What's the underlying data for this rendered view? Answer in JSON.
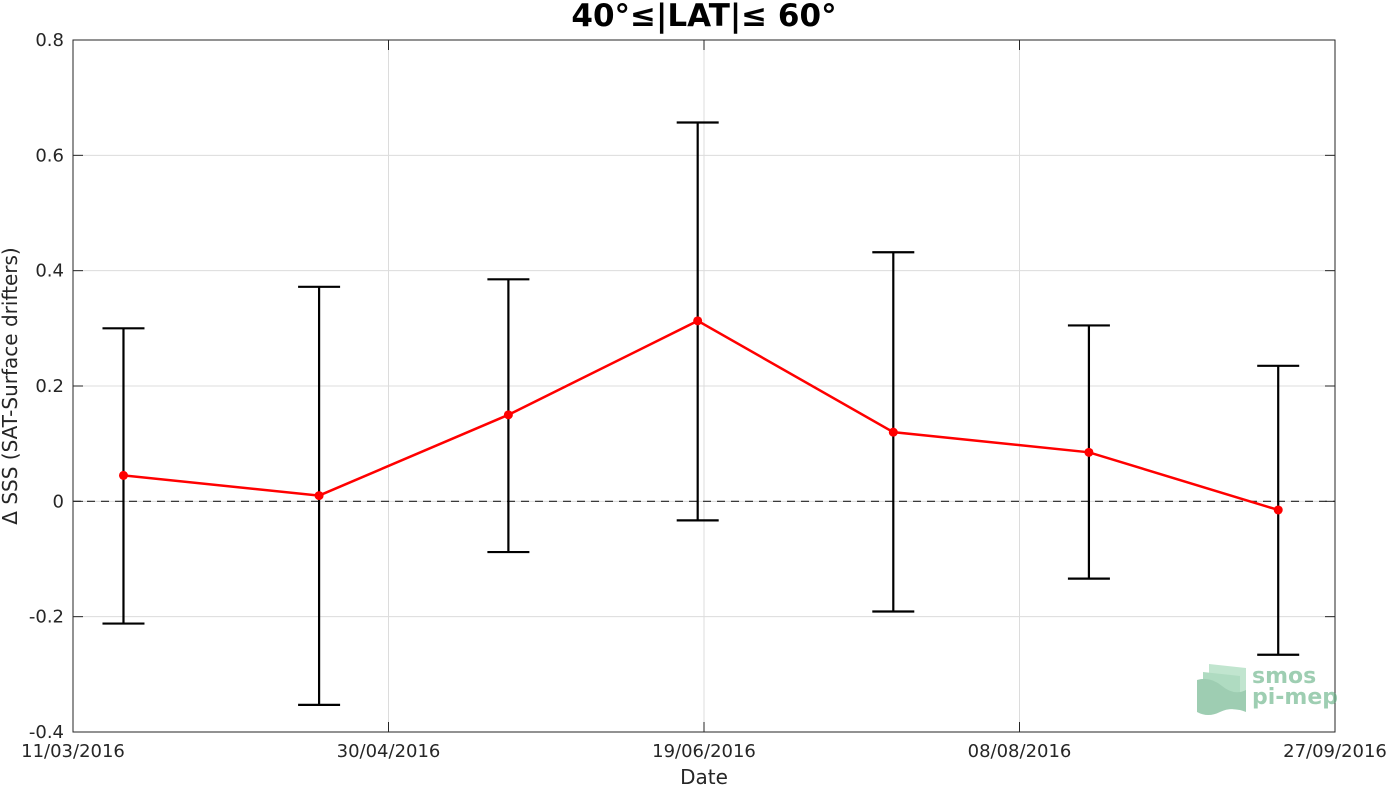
{
  "chart_data": {
    "type": "line",
    "title": "40°≤|LAT|≤ 60°",
    "xlabel": "Date",
    "ylabel": "Δ SSS (SAT-Surface drifters)",
    "x_ticks": [
      "11/03/2016",
      "30/04/2016",
      "19/06/2016",
      "08/08/2016",
      "27/09/2016"
    ],
    "xlim": [
      "2016-03-11",
      "2016-09-27"
    ],
    "ylim": [
      -0.4,
      0.8
    ],
    "y_ticks": [
      "-0.4",
      "-0.2",
      "0",
      "0.2",
      "0.4",
      "0.6",
      "0.8"
    ],
    "grid": true,
    "zero_reference_line": "dashed",
    "series": [
      {
        "color": "#ff0000",
        "marker": "dot",
        "errorbar_color": "#000000",
        "x": [
          "2016-03-19",
          "2016-04-19",
          "2016-05-19",
          "2016-06-18",
          "2016-07-19",
          "2016-08-19",
          "2016-09-18"
        ],
        "values": [
          0.045,
          0.01,
          0.15,
          0.313,
          0.12,
          0.085,
          -0.015
        ],
        "upper": [
          0.3,
          0.372,
          0.385,
          0.657,
          0.432,
          0.305,
          0.235
        ],
        "lower": [
          -0.212,
          -0.353,
          -0.088,
          -0.033,
          -0.191,
          -0.134,
          -0.266
        ]
      }
    ]
  },
  "logo": {
    "line1": "smos",
    "line2": "pi-mep",
    "color": "#5fae80"
  }
}
